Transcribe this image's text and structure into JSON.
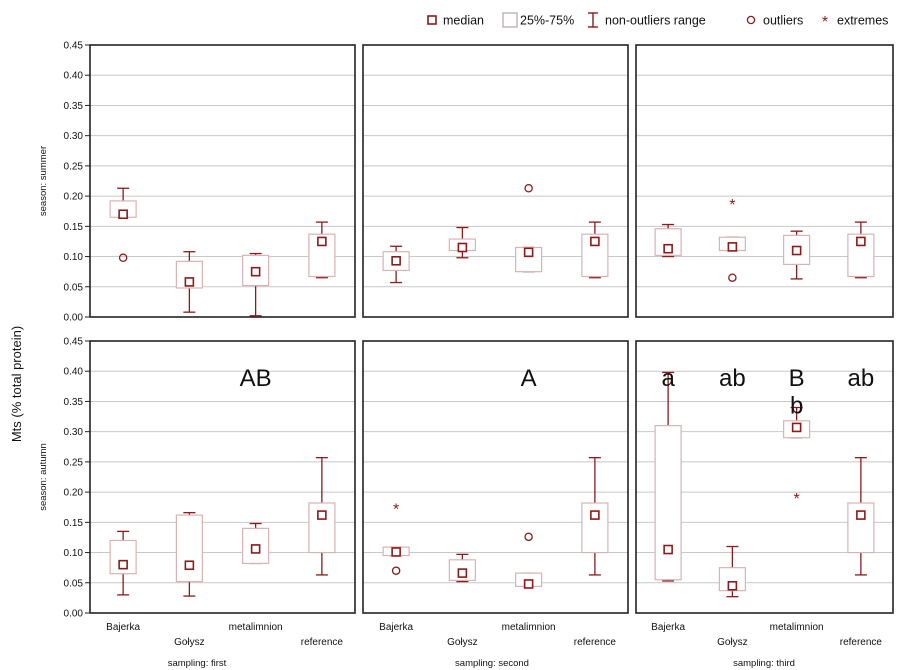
{
  "colors": {
    "box": "#8b1a1a",
    "box_fill": "#ffffff",
    "frame": "#222222",
    "grid": "#c8c8c8"
  },
  "chart_data": {
    "type": "box",
    "ylabel": "Mts (% total protein)",
    "ylim": [
      0,
      0.45
    ],
    "yticks": [
      "0.00",
      "0.05",
      "0.10",
      "0.15",
      "0.20",
      "0.25",
      "0.30",
      "0.35",
      "0.40",
      "0.45"
    ],
    "categories": [
      "Bajerka",
      "Gołysz",
      "metalimnion",
      "reference"
    ],
    "row_labels": [
      "season: summer",
      "season: autumn"
    ],
    "col_labels": [
      "sampling: first",
      "sampling: second",
      "sampling: third"
    ],
    "legend": {
      "position": "top-right",
      "items": [
        {
          "label": "median",
          "icon": "median-square"
        },
        {
          "label": "25%-75%",
          "icon": "box"
        },
        {
          "label": "non-outliers range",
          "icon": "whisker"
        },
        {
          "label": "outliers",
          "icon": "circle"
        },
        {
          "label": "extremes",
          "icon": "star"
        }
      ]
    },
    "panels": [
      {
        "row": 0,
        "col": 0,
        "letters": [],
        "boxes": [
          {
            "category": "Bajerka",
            "median": 0.17,
            "q1": 0.165,
            "q3": 0.192,
            "min": 0.165,
            "max": 0.213,
            "outliers": [
              0.098
            ],
            "extremes": []
          },
          {
            "category": "Gołysz",
            "median": 0.058,
            "q1": 0.048,
            "q3": 0.092,
            "min": 0.008,
            "max": 0.108,
            "outliers": [],
            "extremes": []
          },
          {
            "category": "metalimnion",
            "median": 0.075,
            "q1": 0.052,
            "q3": 0.102,
            "min": 0.002,
            "max": 0.105,
            "outliers": [],
            "extremes": []
          },
          {
            "category": "reference",
            "median": 0.125,
            "q1": 0.067,
            "q3": 0.137,
            "min": 0.065,
            "max": 0.157,
            "outliers": [],
            "extremes": []
          }
        ]
      },
      {
        "row": 0,
        "col": 1,
        "letters": [],
        "boxes": [
          {
            "category": "Bajerka",
            "median": 0.093,
            "q1": 0.077,
            "q3": 0.108,
            "min": 0.057,
            "max": 0.117,
            "outliers": [],
            "extremes": []
          },
          {
            "category": "Gołysz",
            "median": 0.115,
            "q1": 0.11,
            "q3": 0.129,
            "min": 0.098,
            "max": 0.148,
            "outliers": [],
            "extremes": []
          },
          {
            "category": "metalimnion",
            "median": 0.107,
            "q1": 0.075,
            "q3": 0.115,
            "min": 0.075,
            "max": 0.115,
            "outliers": [
              0.213
            ],
            "extremes": []
          },
          {
            "category": "reference",
            "median": 0.125,
            "q1": 0.067,
            "q3": 0.137,
            "min": 0.065,
            "max": 0.157,
            "outliers": [],
            "extremes": []
          }
        ]
      },
      {
        "row": 0,
        "col": 2,
        "letters": [],
        "boxes": [
          {
            "category": "Bajerka",
            "median": 0.113,
            "q1": 0.102,
            "q3": 0.146,
            "min": 0.1,
            "max": 0.153,
            "outliers": [],
            "extremes": []
          },
          {
            "category": "Gołysz",
            "median": 0.116,
            "q1": 0.11,
            "q3": 0.132,
            "min": 0.11,
            "max": 0.132,
            "outliers": [
              0.065
            ],
            "extremes": [
              0.187
            ]
          },
          {
            "category": "metalimnion",
            "median": 0.11,
            "q1": 0.087,
            "q3": 0.135,
            "min": 0.063,
            "max": 0.142,
            "outliers": [],
            "extremes": []
          },
          {
            "category": "reference",
            "median": 0.125,
            "q1": 0.067,
            "q3": 0.137,
            "min": 0.065,
            "max": 0.157,
            "outliers": [],
            "extremes": []
          }
        ]
      },
      {
        "row": 1,
        "col": 0,
        "letters": [
          {
            "category": "metalimnion",
            "text": "AB",
            "y": 0.395
          }
        ],
        "boxes": [
          {
            "category": "Bajerka",
            "median": 0.08,
            "q1": 0.065,
            "q3": 0.12,
            "min": 0.03,
            "max": 0.135,
            "outliers": [],
            "extremes": []
          },
          {
            "category": "Gołysz",
            "median": 0.079,
            "q1": 0.052,
            "q3": 0.162,
            "min": 0.028,
            "max": 0.166,
            "outliers": [],
            "extremes": []
          },
          {
            "category": "metalimnion",
            "median": 0.106,
            "q1": 0.082,
            "q3": 0.14,
            "min": 0.082,
            "max": 0.148,
            "outliers": [],
            "extremes": []
          },
          {
            "category": "reference",
            "median": 0.162,
            "q1": 0.1,
            "q3": 0.182,
            "min": 0.063,
            "max": 0.257,
            "outliers": [],
            "extremes": []
          }
        ]
      },
      {
        "row": 1,
        "col": 1,
        "letters": [
          {
            "category": "metalimnion",
            "text": "A",
            "y": 0.395
          }
        ],
        "boxes": [
          {
            "category": "Bajerka",
            "median": 0.101,
            "q1": 0.095,
            "q3": 0.109,
            "min": 0.095,
            "max": 0.109,
            "outliers": [
              0.07
            ],
            "extremes": [
              0.173
            ]
          },
          {
            "category": "Gołysz",
            "median": 0.066,
            "q1": 0.054,
            "q3": 0.088,
            "min": 0.052,
            "max": 0.097,
            "outliers": [],
            "extremes": []
          },
          {
            "category": "metalimnion",
            "median": 0.048,
            "q1": 0.044,
            "q3": 0.066,
            "min": 0.044,
            "max": 0.066,
            "outliers": [
              0.126
            ],
            "extremes": []
          },
          {
            "category": "reference",
            "median": 0.162,
            "q1": 0.1,
            "q3": 0.182,
            "min": 0.063,
            "max": 0.257,
            "outliers": [],
            "extremes": []
          }
        ]
      },
      {
        "row": 1,
        "col": 2,
        "letters": [
          {
            "category": "Bajerka",
            "text": "a",
            "y": 0.395
          },
          {
            "category": "Gołysz",
            "text": "ab",
            "y": 0.395
          },
          {
            "category": "metalimnion",
            "text": "B",
            "y": 0.395
          },
          {
            "category": "metalimnion",
            "text": "b",
            "y": 0.35
          },
          {
            "category": "reference",
            "text": "ab",
            "y": 0.395
          }
        ],
        "boxes": [
          {
            "category": "Bajerka",
            "median": 0.105,
            "q1": 0.055,
            "q3": 0.31,
            "min": 0.053,
            "max": 0.398,
            "outliers": [],
            "extremes": []
          },
          {
            "category": "Gołysz",
            "median": 0.045,
            "q1": 0.037,
            "q3": 0.075,
            "min": 0.027,
            "max": 0.11,
            "outliers": [],
            "extremes": []
          },
          {
            "category": "metalimnion",
            "median": 0.307,
            "q1": 0.29,
            "q3": 0.318,
            "min": 0.29,
            "max": 0.34,
            "outliers": [],
            "extremes": [
              0.19
            ]
          },
          {
            "category": "reference",
            "median": 0.162,
            "q1": 0.1,
            "q3": 0.182,
            "min": 0.063,
            "max": 0.257,
            "outliers": [],
            "extremes": []
          }
        ]
      }
    ]
  }
}
